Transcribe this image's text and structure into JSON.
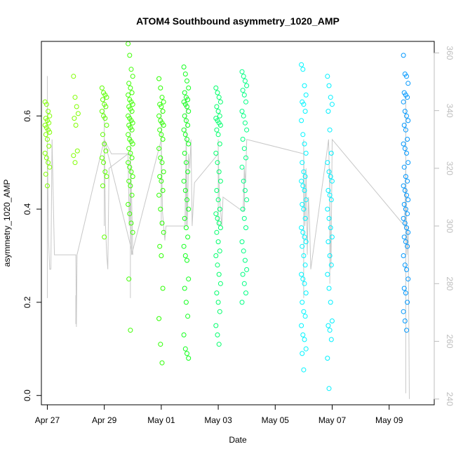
{
  "chart_data": {
    "type": "scatter",
    "title": "ATOM4 Southbound asymmetry_1020_AMP",
    "xlabel": "Date",
    "ylabel": "asymmetry_1020_AMP",
    "xlim": [
      "2016-04-26T19:00",
      "2016-05-10T14:00"
    ],
    "ylim": [
      -0.02,
      0.76
    ],
    "y2lim": [
      238,
      364
    ],
    "x_ticks": [
      {
        "date": "2016-04-27",
        "label": "Apr 27"
      },
      {
        "date": "2016-04-29",
        "label": "Apr 29"
      },
      {
        "date": "2016-05-01",
        "label": "May 01"
      },
      {
        "date": "2016-05-03",
        "label": "May 03"
      },
      {
        "date": "2016-05-05",
        "label": "May 05"
      },
      {
        "date": "2016-05-07",
        "label": "May 07"
      },
      {
        "date": "2016-05-09",
        "label": "May 09"
      }
    ],
    "y_ticks": [
      "0.0",
      "0.2",
      "0.4",
      "0.6"
    ],
    "y_tick_values": [
      0.0,
      0.2,
      0.4,
      0.6
    ],
    "y2_ticks": [
      "240",
      "260",
      "280",
      "300",
      "320",
      "340",
      "360"
    ],
    "y2_tick_values": [
      240,
      260,
      280,
      300,
      320,
      340,
      360
    ],
    "grid": false,
    "point_style": "open circle",
    "clusters": [
      {
        "date": "2016-04-27T00:00",
        "color": "#7fff00",
        "values": [
          0.63,
          0.625,
          0.61,
          0.6,
          0.595,
          0.59,
          0.585,
          0.58,
          0.575,
          0.57,
          0.565,
          0.56,
          0.55,
          0.535,
          0.52,
          0.51,
          0.5,
          0.49,
          0.475,
          0.45
        ]
      },
      {
        "date": "2016-04-28T00:00",
        "color": "#7fff00",
        "values": [
          0.685,
          0.64,
          0.62,
          0.605,
          0.595,
          0.58,
          0.525,
          0.515,
          0.5
        ]
      },
      {
        "date": "2016-04-29T00:00",
        "color": "#5cff00",
        "values": [
          0.66,
          0.65,
          0.645,
          0.64,
          0.635,
          0.625,
          0.62,
          0.61,
          0.6,
          0.595,
          0.58,
          0.56,
          0.54,
          0.525,
          0.51,
          0.5,
          0.48,
          0.47,
          0.45,
          0.34
        ]
      },
      {
        "date": "2016-04-29T22:00",
        "color": "#3cff00",
        "values": [
          0.755,
          0.73,
          0.7,
          0.685,
          0.67,
          0.66,
          0.65,
          0.645,
          0.635,
          0.63,
          0.625,
          0.62,
          0.615,
          0.61,
          0.6,
          0.595,
          0.59,
          0.585,
          0.58,
          0.575,
          0.57,
          0.56,
          0.55,
          0.545,
          0.54,
          0.53,
          0.52,
          0.51,
          0.5,
          0.49,
          0.48,
          0.47,
          0.46,
          0.45,
          0.43,
          0.41,
          0.39,
          0.37,
          0.35,
          0.25,
          0.14
        ]
      },
      {
        "date": "2016-05-01T00:00",
        "color": "#2bff00",
        "values": [
          0.68,
          0.66,
          0.64,
          0.63,
          0.625,
          0.62,
          0.61,
          0.6,
          0.59,
          0.585,
          0.58,
          0.57,
          0.56,
          0.55,
          0.53,
          0.51,
          0.5,
          0.48,
          0.47,
          0.46,
          0.44,
          0.43,
          0.4,
          0.37,
          0.35,
          0.32,
          0.3,
          0.23,
          0.165,
          0.11,
          0.07
        ]
      },
      {
        "date": "2016-05-01T21:00",
        "color": "#11ff1d",
        "values": [
          0.705,
          0.69,
          0.675,
          0.66,
          0.65,
          0.64,
          0.635,
          0.63,
          0.625,
          0.62,
          0.61,
          0.6,
          0.59,
          0.58,
          0.57,
          0.56,
          0.55,
          0.54,
          0.52,
          0.5,
          0.48,
          0.46,
          0.44,
          0.42,
          0.4,
          0.38,
          0.36,
          0.34,
          0.32,
          0.3,
          0.29,
          0.25,
          0.23,
          0.2,
          0.17,
          0.13,
          0.1,
          0.09,
          0.08
        ]
      },
      {
        "date": "2016-05-03T00:00",
        "color": "#00ff6c",
        "values": [
          0.66,
          0.65,
          0.64,
          0.63,
          0.62,
          0.61,
          0.6,
          0.595,
          0.59,
          0.585,
          0.58,
          0.57,
          0.56,
          0.54,
          0.52,
          0.5,
          0.48,
          0.46,
          0.44,
          0.42,
          0.4,
          0.39,
          0.38,
          0.37,
          0.36,
          0.35,
          0.33,
          0.31,
          0.3,
          0.28,
          0.26,
          0.24,
          0.22,
          0.2,
          0.18,
          0.15,
          0.13,
          0.11
        ]
      },
      {
        "date": "2016-05-03T22:00",
        "color": "#00ff83",
        "values": [
          0.695,
          0.685,
          0.675,
          0.665,
          0.655,
          0.645,
          0.63,
          0.61,
          0.6,
          0.585,
          0.57,
          0.55,
          0.53,
          0.51,
          0.49,
          0.46,
          0.44,
          0.42,
          0.4,
          0.38,
          0.36,
          0.33,
          0.31,
          0.29,
          0.27,
          0.26,
          0.24,
          0.22,
          0.2
        ]
      },
      {
        "date": "2016-05-06T00:00",
        "color": "#00f5ff",
        "values": [
          0.71,
          0.7,
          0.665,
          0.645,
          0.63,
          0.625,
          0.61,
          0.59,
          0.56,
          0.54,
          0.52,
          0.5,
          0.48,
          0.47,
          0.46,
          0.45,
          0.44,
          0.42,
          0.41,
          0.4,
          0.38,
          0.36,
          0.35,
          0.34,
          0.33,
          0.32,
          0.3,
          0.28,
          0.26,
          0.25,
          0.24,
          0.22,
          0.2,
          0.18,
          0.17,
          0.15,
          0.13,
          0.12,
          0.1,
          0.09,
          0.055
        ]
      },
      {
        "date": "2016-05-06T22:00",
        "color": "#00f0ff",
        "values": [
          0.685,
          0.665,
          0.64,
          0.625,
          0.61,
          0.57,
          0.52,
          0.5,
          0.48,
          0.47,
          0.46,
          0.44,
          0.43,
          0.42,
          0.4,
          0.38,
          0.36,
          0.34,
          0.33,
          0.3,
          0.28,
          0.26,
          0.23,
          0.2,
          0.16,
          0.15,
          0.14,
          0.12,
          0.08,
          0.015
        ]
      },
      {
        "date": "2016-05-09T14:00",
        "color": "#0098ff",
        "values": [
          0.73,
          0.69,
          0.685,
          0.67,
          0.65,
          0.645,
          0.64,
          0.63,
          0.61,
          0.6,
          0.59,
          0.58,
          0.57,
          0.55,
          0.54,
          0.53,
          0.52,
          0.5,
          0.49,
          0.47,
          0.46,
          0.45,
          0.44,
          0.43,
          0.42,
          0.41,
          0.4,
          0.39,
          0.38,
          0.37,
          0.36,
          0.35,
          0.34,
          0.33,
          0.32,
          0.3,
          0.28,
          0.27,
          0.25,
          0.23,
          0.22,
          0.2,
          0.18,
          0.16,
          0.14
        ]
      }
    ],
    "line_series": {
      "color": "#c8c8c8",
      "axis": "right",
      "x": [
        "2016-04-27T00:00",
        "2016-04-27T01:00",
        "2016-04-27T02:00",
        "2016-04-27T03:00",
        "2016-04-27T04:00",
        "2016-04-27T06:00",
        "2016-04-28T00:00",
        "2016-04-28T00:30",
        "2016-04-28T01:00",
        "2016-04-29T00:00",
        "2016-04-29T06:00",
        "2016-04-29T20:00",
        "2016-04-29T22:00",
        "2016-04-29T23:00",
        "2016-04-30T00:00",
        "2016-04-29T00:00",
        "2016-04-29T01:00",
        "2016-04-29T02:00",
        "2016-04-29T03:00",
        "2016-04-29T04:00",
        "2016-04-29T20:00",
        "2016-04-29T21:00",
        "2016-04-29T22:00",
        "2016-04-29T23:00",
        "2016-05-01T00:00",
        "2016-05-01T01:00",
        "2016-05-01T02:00",
        "2016-05-01T03:00",
        "2016-05-01T04:00",
        "2016-05-01T20:00",
        "2016-05-01T21:00",
        "2016-05-01T22:00",
        "2016-05-01T23:00",
        "2016-05-02T00:00",
        "2016-05-02T01:00",
        "2016-05-02T02:00",
        "2016-05-02T04:00",
        "2016-05-03T00:00",
        "2016-05-03T01:00",
        "2016-05-03T02:00",
        "2016-05-03T03:00",
        "2016-05-03T04:00",
        "2016-05-03T21:00",
        "2016-05-03T22:00",
        "2016-05-03T23:00",
        "2016-05-04T00:00",
        "2016-05-06T00:00",
        "2016-05-06T01:00",
        "2016-05-06T02:00",
        "2016-05-06T03:00",
        "2016-05-06T04:00",
        "2016-05-06T05:00",
        "2016-05-06T06:00",
        "2016-05-06T21:00",
        "2016-05-06T22:00",
        "2016-05-06T23:00",
        "2016-05-07T00:00",
        "2016-05-09T13:00",
        "2016-05-09T14:00",
        "2016-05-09T15:00",
        "2016-05-09T16:00",
        "2016-05-09T17:00"
      ],
      "y": [
        330,
        295,
        285,
        285,
        330,
        290,
        290,
        265,
        290,
        330,
        325,
        325,
        325,
        310,
        290,
        330,
        300,
        290,
        285,
        320,
        325,
        300,
        315,
        290,
        330,
        305,
        300,
        295,
        300,
        300,
        330,
        300,
        325,
        320,
        330,
        300,
        315,
        325,
        310,
        305,
        300,
        310,
        305,
        320,
        315,
        330,
        325,
        300,
        320,
        290,
        310,
        300,
        285,
        330,
        310,
        285,
        330,
        300,
        320,
        290,
        300,
        240
      ],
      "spikes": [
        {
          "date": "2016-04-27T00:00",
          "low": 275,
          "high": 352
        },
        {
          "date": "2016-04-28T00:00",
          "low": 266,
          "high": 276
        },
        {
          "date": "2016-04-29T00:00",
          "low": 300,
          "high": 345
        },
        {
          "date": "2016-04-29T22:00",
          "low": 275,
          "high": 340
        },
        {
          "date": "2016-05-01T00:00",
          "low": 300,
          "high": 340
        },
        {
          "date": "2016-05-01T21:00",
          "low": 300,
          "high": 345
        },
        {
          "date": "2016-05-03T00:00",
          "low": 300,
          "high": 330
        },
        {
          "date": "2016-05-03T22:00",
          "low": 305,
          "high": 320
        },
        {
          "date": "2016-05-06T00:00",
          "low": 275,
          "high": 330
        },
        {
          "date": "2016-05-06T22:00",
          "low": 280,
          "high": 320
        },
        {
          "date": "2016-05-09T14:00",
          "low": 242,
          "high": 345
        }
      ]
    }
  }
}
